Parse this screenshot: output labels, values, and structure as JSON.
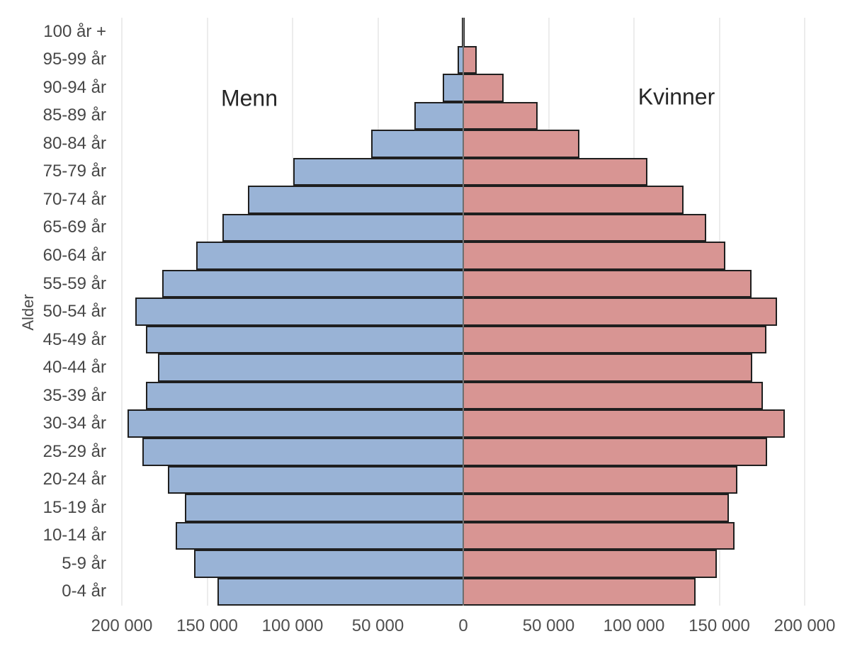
{
  "chart_data": {
    "type": "bar",
    "variant": "population-pyramid",
    "title": "",
    "ylabel": "Alder",
    "categories_top_to_bottom": [
      "100 år +",
      "95-99 år",
      "90-94 år",
      "85-89 år",
      "80-84 år",
      "75-79 år",
      "70-74 år",
      "65-69 år",
      "60-64 år",
      "55-59 år",
      "50-54 år",
      "45-49 år",
      "40-44 år",
      "35-39 år",
      "30-34 år",
      "25-29 år",
      "20-24 år",
      "15-19 år",
      "10-14 år",
      "5-9 år",
      "0-4 år"
    ],
    "series": [
      {
        "name": "Menn",
        "side": "left",
        "color": "#99B3D6",
        "values": [
          500,
          3500,
          12000,
          28500,
          54000,
          99500,
          126000,
          141000,
          156500,
          176500,
          192000,
          186000,
          179000,
          186000,
          196500,
          188000,
          173000,
          163000,
          168500,
          157500,
          144000
        ]
      },
      {
        "name": "Kvinner",
        "side": "right",
        "color": "#D89593",
        "values": [
          1000,
          8000,
          23500,
          43500,
          68000,
          108000,
          129000,
          142500,
          153500,
          169000,
          184000,
          177500,
          169500,
          175500,
          188500,
          178000,
          160500,
          155500,
          159000,
          148500,
          136000
        ]
      }
    ],
    "x_axis": {
      "tick_labels": [
        "200 000",
        "150 000",
        "100 000",
        "50 000",
        "0",
        "50 000",
        "100 000",
        "150 000",
        "200 000"
      ],
      "tick_values": [
        -200000,
        -150000,
        -100000,
        -50000,
        0,
        50000,
        100000,
        150000,
        200000
      ],
      "xlim": [
        -200000,
        200000
      ],
      "gridlines": true
    },
    "style": {
      "bar_border_color": "#1f1f1f",
      "gridline_color": "#d9d9d9",
      "center_axis_color": "#6e6e6e",
      "axis_text_color": "#4a4a4a",
      "legend_position": "none"
    }
  }
}
